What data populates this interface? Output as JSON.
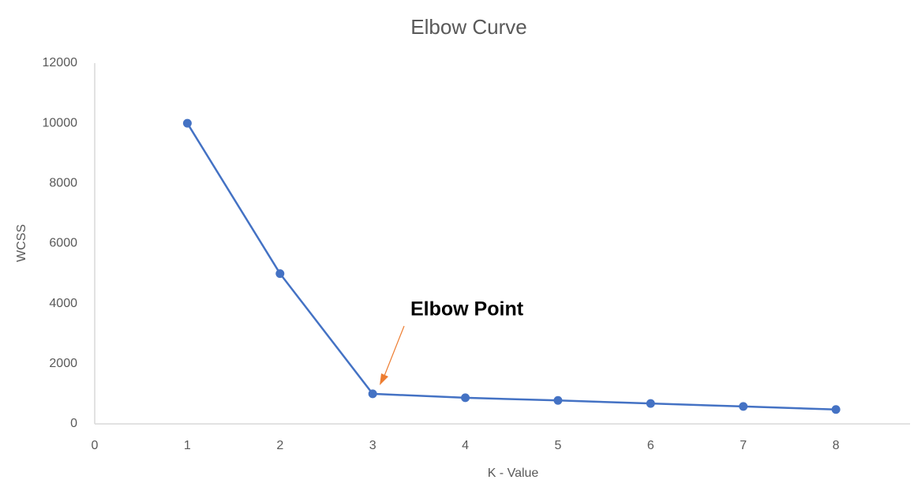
{
  "chart_data": {
    "type": "line",
    "title": "Elbow Curve",
    "x_label": "K - Value",
    "y_label": "WCSS",
    "x": [
      1,
      2,
      3,
      4,
      5,
      6,
      7,
      8
    ],
    "series": [
      {
        "name": "WCSS",
        "color": "#4472c4",
        "values": [
          10000,
          5000,
          1000,
          870,
          780,
          680,
          580,
          480
        ]
      }
    ],
    "xlim": [
      0,
      8.8
    ],
    "xticks": [
      0,
      1,
      2,
      3,
      4,
      5,
      6,
      7,
      8
    ],
    "ylim": [
      0,
      12000
    ],
    "yticks": [
      0,
      2000,
      4000,
      6000,
      8000,
      10000,
      12000
    ],
    "grid": false,
    "annotation": "Elbow Point",
    "annotation_color": "#ed7d31"
  }
}
